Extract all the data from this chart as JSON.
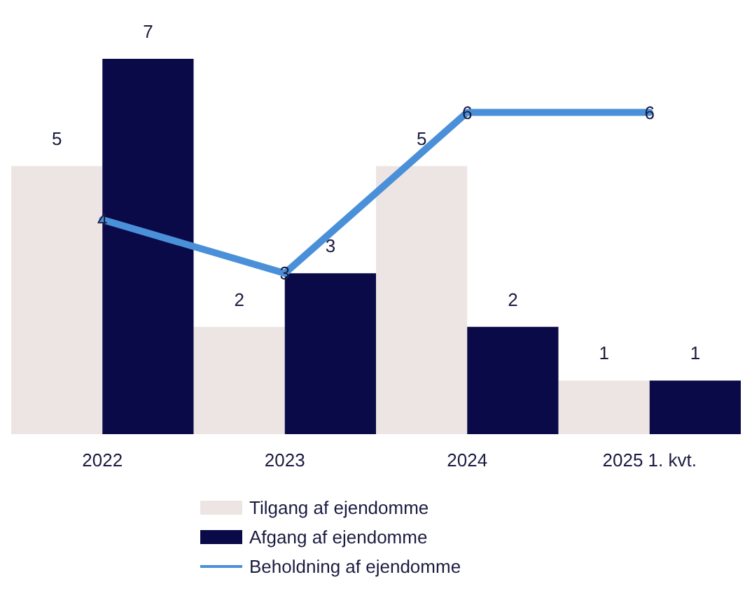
{
  "chart_data": {
    "type": "bar",
    "categories": [
      "2022",
      "2023",
      "2024",
      "2025 1. kvt."
    ],
    "series": [
      {
        "name": "Tilgang af ejendomme",
        "color": "#ede5e3",
        "values": [
          5,
          2,
          5,
          1
        ]
      },
      {
        "name": "Afgang af ejendomme",
        "color": "#0a0a48",
        "values": [
          7,
          3,
          2,
          1
        ]
      },
      {
        "name": "Beholdning af ejendomme",
        "type": "line",
        "color": "#4a90d9",
        "values": [
          4,
          3,
          6,
          6
        ]
      }
    ],
    "data_labels": true,
    "legend": "bottom",
    "grid": false,
    "tick_labels": "x",
    "marker": "none",
    "line_style": "solid"
  }
}
